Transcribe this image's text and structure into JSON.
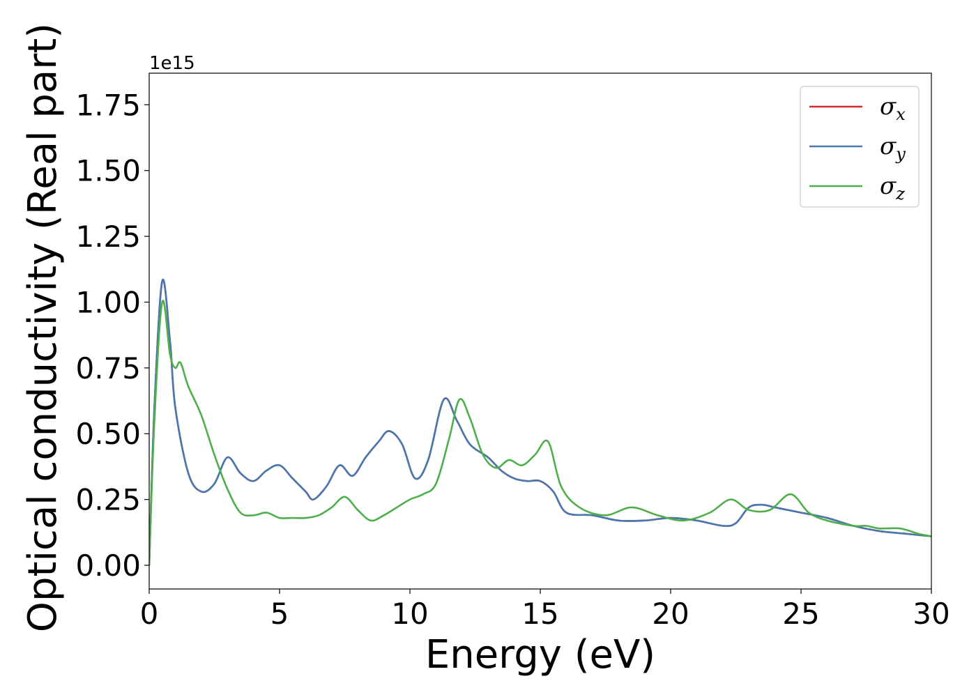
{
  "chart_data": {
    "type": "line",
    "title": "",
    "xlabel": "Energy (eV)",
    "ylabel": "Optical conductivity (Real part)",
    "y_offset_text": "1e15",
    "xlim": [
      0,
      30
    ],
    "ylim": [
      -0.09,
      1.87
    ],
    "xticks": [
      0,
      5,
      10,
      15,
      20,
      25,
      30
    ],
    "xtick_labels": [
      "0",
      "5",
      "10",
      "15",
      "20",
      "25",
      "30"
    ],
    "yticks": [
      0.0,
      0.25,
      0.5,
      0.75,
      1.0,
      1.25,
      1.5,
      1.75
    ],
    "ytick_labels": [
      "0.00",
      "0.25",
      "0.50",
      "0.75",
      "1.00",
      "1.25",
      "1.50",
      "1.75"
    ],
    "grid": false,
    "legend_position": "top-right",
    "series": [
      {
        "name": "σ",
        "sub": "x",
        "color": "#d62728",
        "x": [
          0,
          0.2,
          0.5,
          0.8,
          1.0,
          1.5,
          2.0,
          2.5,
          3.0,
          3.5,
          4.0,
          4.5,
          5.0,
          5.5,
          6.0,
          6.3,
          6.8,
          7.3,
          7.8,
          8.3,
          8.8,
          9.2,
          9.7,
          10.2,
          10.7,
          11.3,
          11.8,
          12.3,
          13.0,
          13.5,
          14.0,
          14.5,
          15.0,
          15.5,
          16.0,
          17.0,
          18.0,
          19.0,
          20.0,
          21.0,
          22.0,
          22.5,
          23.0,
          23.5,
          24.0,
          25.0,
          26.0,
          27.0,
          28.0,
          29.0,
          30.0
        ],
        "y": [
          0.0,
          0.6,
          1.08,
          0.85,
          0.6,
          0.35,
          0.28,
          0.31,
          0.41,
          0.35,
          0.32,
          0.36,
          0.38,
          0.33,
          0.28,
          0.25,
          0.3,
          0.38,
          0.34,
          0.41,
          0.47,
          0.51,
          0.46,
          0.33,
          0.4,
          0.63,
          0.55,
          0.46,
          0.41,
          0.36,
          0.33,
          0.32,
          0.32,
          0.28,
          0.2,
          0.19,
          0.17,
          0.17,
          0.18,
          0.17,
          0.15,
          0.16,
          0.22,
          0.23,
          0.22,
          0.2,
          0.18,
          0.15,
          0.13,
          0.12,
          0.11
        ]
      },
      {
        "name": "σ",
        "sub": "y",
        "color": "#4878b0",
        "x": [
          0,
          0.2,
          0.5,
          0.8,
          1.0,
          1.5,
          2.0,
          2.5,
          3.0,
          3.5,
          4.0,
          4.5,
          5.0,
          5.5,
          6.0,
          6.3,
          6.8,
          7.3,
          7.8,
          8.3,
          8.8,
          9.2,
          9.7,
          10.2,
          10.7,
          11.3,
          11.8,
          12.3,
          13.0,
          13.5,
          14.0,
          14.5,
          15.0,
          15.5,
          16.0,
          17.0,
          18.0,
          19.0,
          20.0,
          21.0,
          22.0,
          22.5,
          23.0,
          23.5,
          24.0,
          25.0,
          26.0,
          27.0,
          28.0,
          29.0,
          30.0
        ],
        "y": [
          0.0,
          0.6,
          1.08,
          0.85,
          0.6,
          0.35,
          0.28,
          0.31,
          0.41,
          0.35,
          0.32,
          0.36,
          0.38,
          0.33,
          0.28,
          0.25,
          0.3,
          0.38,
          0.34,
          0.41,
          0.47,
          0.51,
          0.46,
          0.33,
          0.4,
          0.63,
          0.55,
          0.46,
          0.41,
          0.36,
          0.33,
          0.32,
          0.32,
          0.28,
          0.2,
          0.19,
          0.17,
          0.17,
          0.18,
          0.17,
          0.15,
          0.16,
          0.22,
          0.23,
          0.22,
          0.2,
          0.18,
          0.15,
          0.13,
          0.12,
          0.11
        ]
      },
      {
        "name": "σ",
        "sub": "z",
        "color": "#4daf4a",
        "x": [
          0,
          0.2,
          0.5,
          0.8,
          1.0,
          1.2,
          1.5,
          2.0,
          2.5,
          3.0,
          3.5,
          4.0,
          4.5,
          5.0,
          5.5,
          6.0,
          6.5,
          7.0,
          7.5,
          8.0,
          8.5,
          9.0,
          9.5,
          10.0,
          10.5,
          11.0,
          11.5,
          11.9,
          12.3,
          12.8,
          13.3,
          13.8,
          14.3,
          14.8,
          15.3,
          15.8,
          16.5,
          17.5,
          18.5,
          19.5,
          20.5,
          21.5,
          22.3,
          23.0,
          23.8,
          24.6,
          25.3,
          26.0,
          27.0,
          27.5,
          28.0,
          28.8,
          29.5,
          30.0
        ],
        "y": [
          0.0,
          0.55,
          1.0,
          0.8,
          0.75,
          0.77,
          0.68,
          0.57,
          0.42,
          0.29,
          0.2,
          0.19,
          0.2,
          0.18,
          0.18,
          0.18,
          0.19,
          0.22,
          0.26,
          0.21,
          0.17,
          0.19,
          0.22,
          0.25,
          0.27,
          0.31,
          0.48,
          0.63,
          0.56,
          0.42,
          0.37,
          0.4,
          0.38,
          0.42,
          0.47,
          0.3,
          0.22,
          0.19,
          0.22,
          0.19,
          0.17,
          0.2,
          0.25,
          0.21,
          0.21,
          0.27,
          0.2,
          0.17,
          0.15,
          0.15,
          0.14,
          0.14,
          0.12,
          0.11
        ]
      }
    ]
  }
}
